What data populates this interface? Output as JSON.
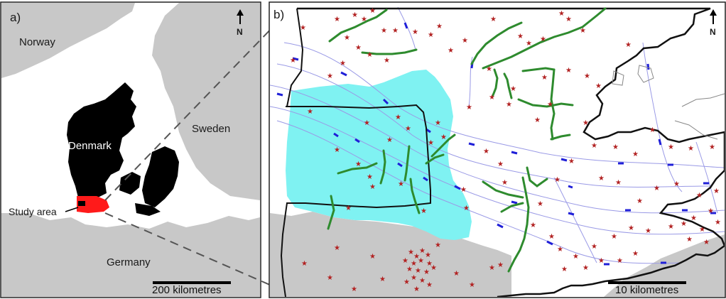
{
  "panel_a": {
    "letter": "a)",
    "labels": {
      "norway": "Norway",
      "denmark": "Denmark",
      "sweden": "Sweden",
      "germany": "Germany",
      "study_area": "Study area"
    },
    "north": "N",
    "scalebar": "200 kilometres"
  },
  "panel_b": {
    "letter": "b)",
    "north": "N",
    "scalebar": "10 kilometres"
  },
  "colors": {
    "land": "#c8c8c8",
    "denmark": "#000000",
    "study_area": "#ff1a1a",
    "water_region": "#7ff2f2",
    "fault_green": "#2e8b2e",
    "flow_line": "#9a9ae6",
    "flow_dash": "#1f1fd8",
    "star": "#b22222",
    "boundary": "#111111"
  }
}
